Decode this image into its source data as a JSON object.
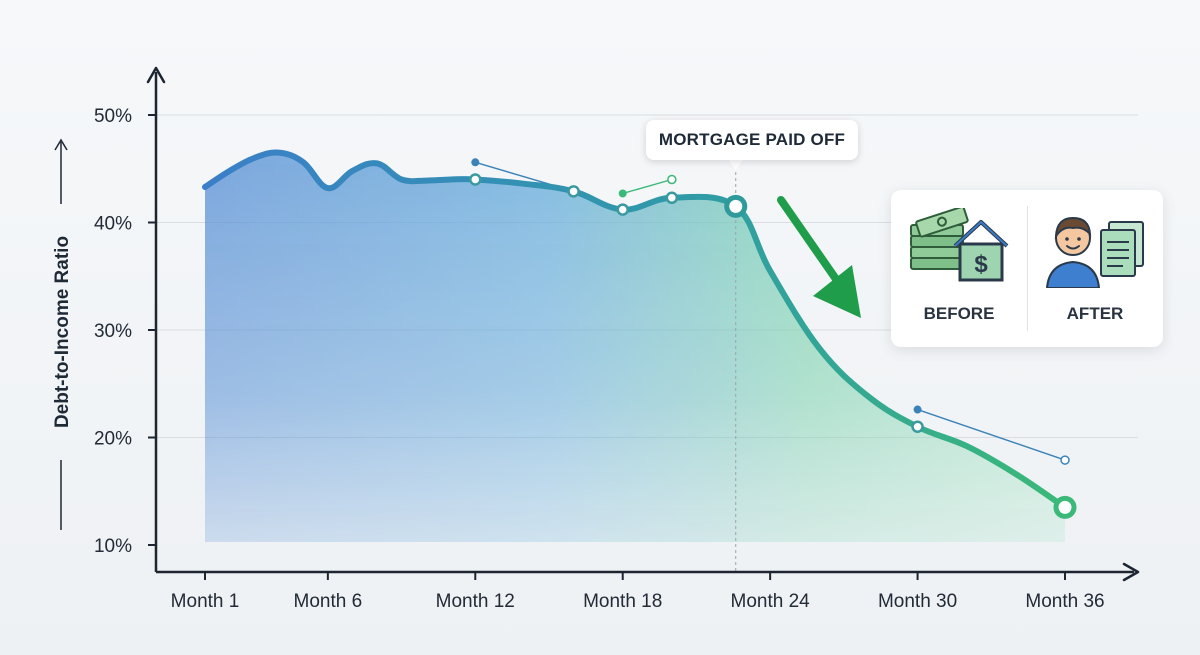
{
  "chart_data": {
    "type": "area",
    "ylabel": "Debt-to-Income Ratio",
    "xlabel": "",
    "ylim": [
      10,
      50
    ],
    "yticks": [
      10,
      20,
      30,
      40,
      50
    ],
    "ytick_labels": [
      "10%",
      "20%",
      "30%",
      "40%",
      "50%"
    ],
    "xlim": [
      1,
      36
    ],
    "xticks": [
      1,
      6,
      12,
      18,
      24,
      30,
      36
    ],
    "xtick_labels": [
      "Month 1",
      "Month 6",
      "Month 12",
      "Month 18",
      "Month 24",
      "Month 30",
      "Month 36"
    ],
    "grid": true,
    "series": [
      {
        "values": [
          {
            "x": 1,
            "y": 43.3
          },
          {
            "x": 2,
            "y": 44.8
          },
          {
            "x": 3,
            "y": 46.0
          },
          {
            "x": 4,
            "y": 46.5
          },
          {
            "x": 5,
            "y": 45.6
          },
          {
            "x": 6,
            "y": 43.2
          },
          {
            "x": 7,
            "y": 44.8
          },
          {
            "x": 8,
            "y": 45.5
          },
          {
            "x": 9,
            "y": 44.0
          },
          {
            "x": 10,
            "y": 43.9
          },
          {
            "x": 11,
            "y": 44.0
          },
          {
            "x": 12,
            "y": 44.0
          },
          {
            "x": 14,
            "y": 43.6
          },
          {
            "x": 16,
            "y": 42.9
          },
          {
            "x": 18,
            "y": 41.2
          },
          {
            "x": 20,
            "y": 42.3
          },
          {
            "x": 22.6,
            "y": 41.5
          },
          {
            "x": 24,
            "y": 35.5
          },
          {
            "x": 26,
            "y": 28.3
          },
          {
            "x": 28,
            "y": 23.8
          },
          {
            "x": 30,
            "y": 21.0
          },
          {
            "x": 32,
            "y": 19.2
          },
          {
            "x": 34,
            "y": 16.6
          },
          {
            "x": 36,
            "y": 13.5
          }
        ]
      }
    ],
    "markers": [
      {
        "x": 12,
        "y": 44.0
      },
      {
        "x": 16,
        "y": 42.9
      },
      {
        "x": 18,
        "y": 41.2
      },
      {
        "x": 20,
        "y": 42.3
      },
      {
        "x": 30,
        "y": 21.0
      }
    ],
    "highlights": [
      {
        "x": 22.6,
        "y": 41.5,
        "color": "#2f9a9a"
      },
      {
        "x": 36,
        "y": 13.5,
        "color": "#3bb978"
      }
    ],
    "overlay_segments": [
      {
        "points": [
          {
            "x": 12,
            "y": 45.6
          },
          {
            "x": 16,
            "y": 42.9
          }
        ],
        "color": "#3b82b8"
      },
      {
        "points": [
          {
            "x": 18,
            "y": 42.7
          },
          {
            "x": 20,
            "y": 44.0
          }
        ],
        "color": "#3bb978"
      },
      {
        "points": [
          {
            "x": 30,
            "y": 22.6
          },
          {
            "x": 36,
            "y": 17.9
          }
        ],
        "color": "#3b82b8"
      }
    ],
    "annotations": [
      {
        "text": "MORTGAGE PAID OFF",
        "x": 22.6
      }
    ],
    "colors": {
      "start": "#3b82c4",
      "end": "#3bb978",
      "axis": "#1c2530",
      "grid": "#d9dde2"
    }
  },
  "panel": {
    "before_label": "BEFORE",
    "after_label": "AFTER",
    "before_icon": "money-house-icon",
    "after_icon": "person-documents-icon"
  }
}
